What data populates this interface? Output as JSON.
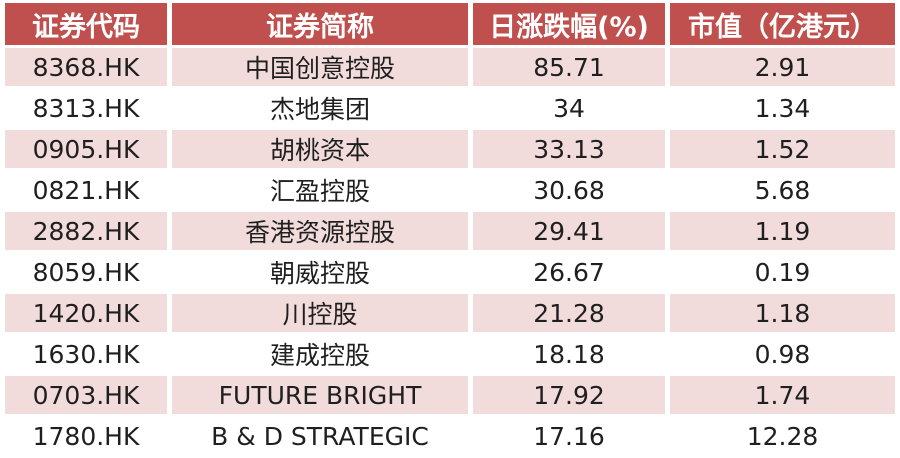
{
  "table": {
    "headers": [
      "证券代码",
      "证券简称",
      "日涨跌幅(%)",
      "市值（亿港元）"
    ],
    "rows": [
      {
        "code": "8368.HK",
        "name": "中国创意控股",
        "change": "85.71",
        "market_cap": "2.91"
      },
      {
        "code": "8313.HK",
        "name": "杰地集团",
        "change": "34",
        "market_cap": "1.34"
      },
      {
        "code": "0905.HK",
        "name": "胡桃资本",
        "change": "33.13",
        "market_cap": "1.52"
      },
      {
        "code": "0821.HK",
        "name": "汇盈控股",
        "change": "30.68",
        "market_cap": "5.68"
      },
      {
        "code": "2882.HK",
        "name": "香港资源控股",
        "change": "29.41",
        "market_cap": "1.19"
      },
      {
        "code": "8059.HK",
        "name": "朝威控股",
        "change": "26.67",
        "market_cap": "0.19"
      },
      {
        "code": "1420.HK",
        "name": "川控股",
        "change": "21.28",
        "market_cap": "1.18"
      },
      {
        "code": "1630.HK",
        "name": "建成控股",
        "change": "18.18",
        "market_cap": "0.98"
      },
      {
        "code": "0703.HK",
        "name": "FUTURE BRIGHT",
        "change": "17.92",
        "market_cap": "1.74"
      },
      {
        "code": "1780.HK",
        "name": "B & D STRATEGIC",
        "change": "17.16",
        "market_cap": "12.28"
      }
    ],
    "colors": {
      "header_bg": "#C0504D",
      "header_text": "#FFFFFF",
      "row_alt_bg": "#F2DCDB",
      "row_bg": "#FFFFFF",
      "body_text": "#1F1F1F"
    }
  },
  "chart_data": {
    "type": "table",
    "title": "",
    "columns": [
      "证券代码",
      "证券简称",
      "日涨跌幅(%)",
      "市值（亿港元）"
    ],
    "rows": [
      [
        "8368.HK",
        "中国创意控股",
        85.71,
        2.91
      ],
      [
        "8313.HK",
        "杰地集团",
        34,
        1.34
      ],
      [
        "0905.HK",
        "胡桃资本",
        33.13,
        1.52
      ],
      [
        "0821.HK",
        "汇盈控股",
        30.68,
        5.68
      ],
      [
        "2882.HK",
        "香港资源控股",
        29.41,
        1.19
      ],
      [
        "8059.HK",
        "朝威控股",
        26.67,
        0.19
      ],
      [
        "1420.HK",
        "川控股",
        21.28,
        1.18
      ],
      [
        "1630.HK",
        "建成控股",
        18.18,
        0.98
      ],
      [
        "0703.HK",
        "FUTURE BRIGHT",
        17.92,
        1.74
      ],
      [
        "1780.HK",
        "B & D STRATEGIC",
        17.16,
        12.28
      ]
    ]
  }
}
